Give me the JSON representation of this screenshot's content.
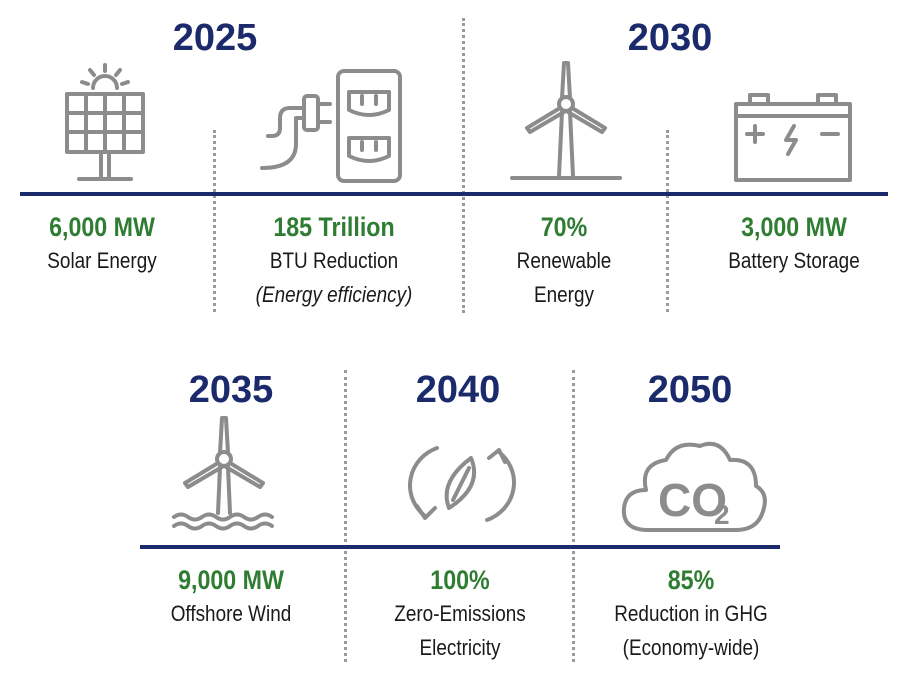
{
  "row1": {
    "year_left": "2025",
    "year_right": "2030",
    "items": [
      {
        "value": "6,000 MW",
        "label_lines": [
          "Solar Energy"
        ],
        "icon": "solar-panel-icon"
      },
      {
        "value": "185 Trillion",
        "label_lines": [
          "BTU Reduction"
        ],
        "note": "(Energy efficiency)",
        "icon": "plug-outlet-icon"
      },
      {
        "value": "70%",
        "label_lines": [
          "Renewable",
          "Energy"
        ],
        "icon": "wind-turbine-icon"
      },
      {
        "value": "3,000 MW",
        "label_lines": [
          "Battery Storage"
        ],
        "icon": "battery-icon"
      }
    ]
  },
  "row2": {
    "items": [
      {
        "year": "2035",
        "value": "9,000 MW",
        "label_lines": [
          "Offshore Wind"
        ],
        "icon": "offshore-wind-icon"
      },
      {
        "year": "2040",
        "value": "100%",
        "label_lines": [
          "Zero-Emissions",
          "Electricity"
        ],
        "icon": "recycle-leaf-icon"
      },
      {
        "year": "2050",
        "value": "85%",
        "label_lines": [
          "Reduction in GHG",
          "(Economy-wide)"
        ],
        "icon": "co2-cloud-icon",
        "icon_text": "CO",
        "icon_subscript": "2"
      }
    ]
  },
  "colors": {
    "navy": "#1b2a6b",
    "green": "#2e7d32",
    "icon_gray": "#8c8c8c",
    "divider": "#9a9a9a"
  }
}
